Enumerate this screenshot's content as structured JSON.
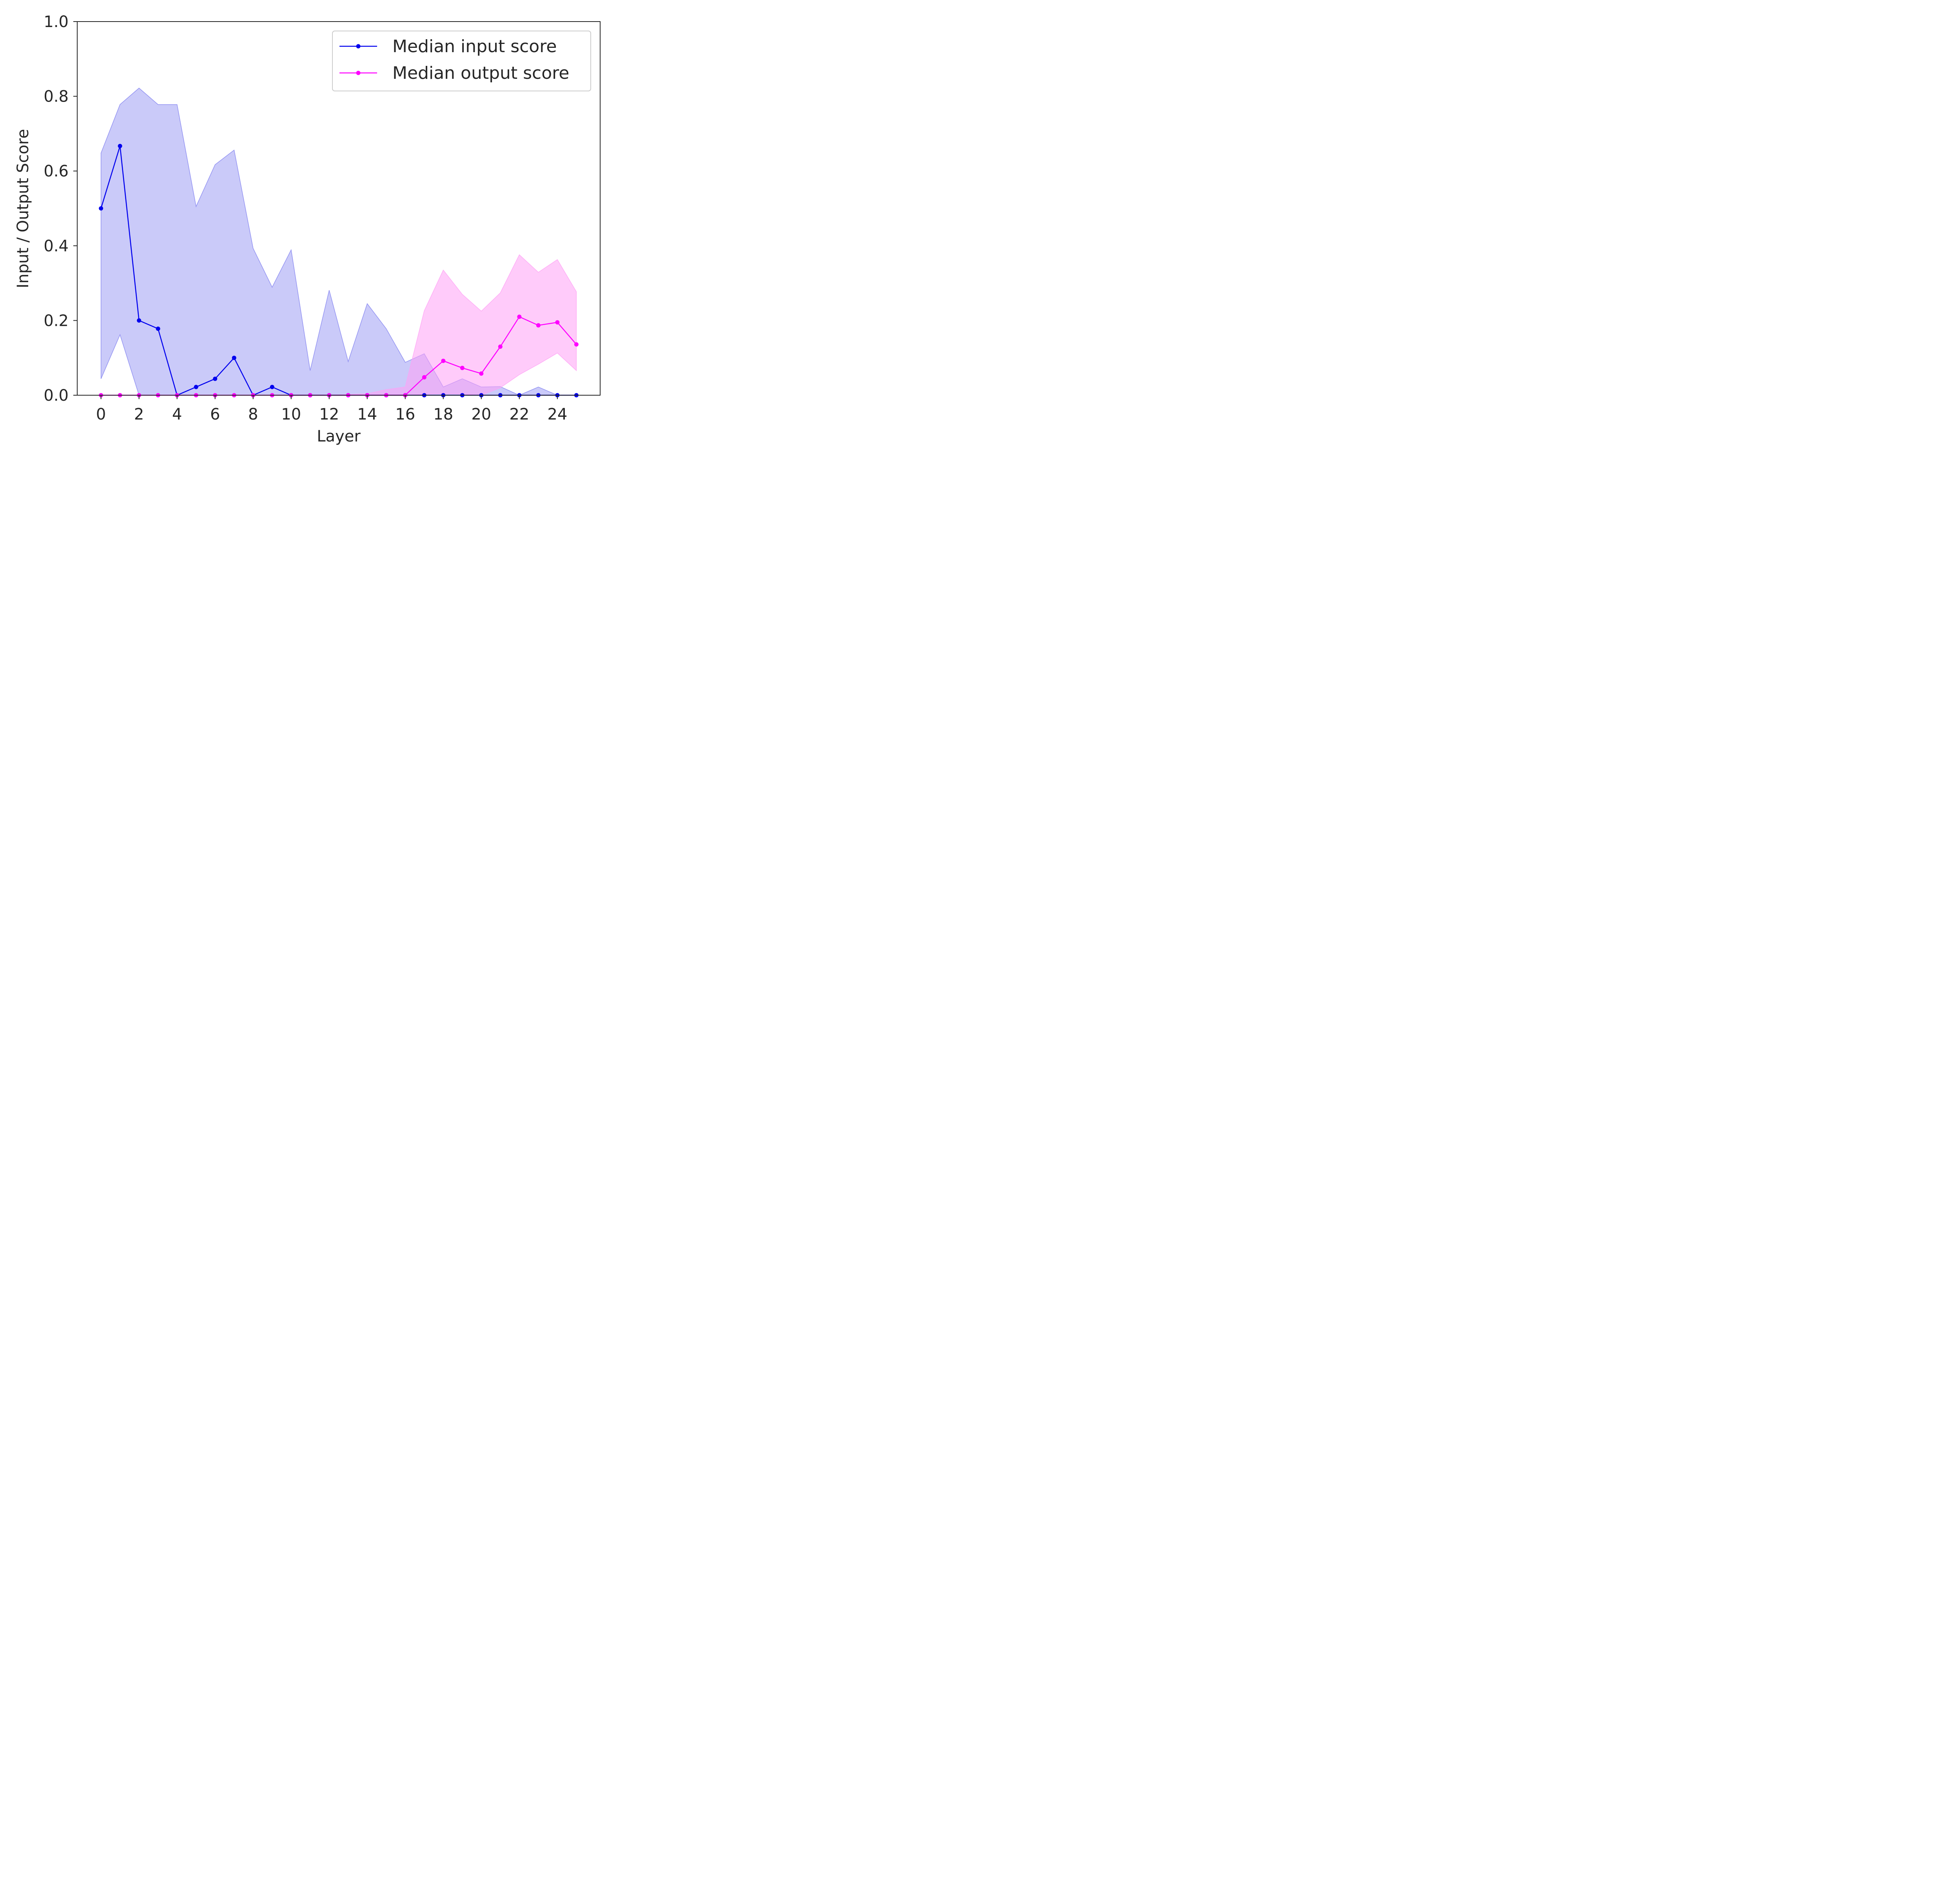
{
  "chart_data": {
    "type": "line",
    "xlabel": "Layer",
    "ylabel": "Input / Output Score",
    "xlim": [
      -1.25,
      26.25
    ],
    "ylim": [
      0.0,
      1.0
    ],
    "xticks": [
      0,
      2,
      4,
      6,
      8,
      10,
      12,
      14,
      16,
      18,
      20,
      22,
      24
    ],
    "xtick_labels": [
      "0",
      "2",
      "4",
      "6",
      "8",
      "10",
      "12",
      "14",
      "16",
      "18",
      "20",
      "22",
      "24"
    ],
    "yticks": [
      0.0,
      0.2,
      0.4,
      0.6,
      0.8,
      1.0
    ],
    "ytick_labels": [
      "0.0",
      "0.2",
      "0.4",
      "0.6",
      "0.8",
      "1.0"
    ],
    "grid": false,
    "legend_position": "top-right",
    "x": [
      0,
      1,
      2,
      3,
      4,
      5,
      6,
      7,
      8,
      9,
      10,
      11,
      12,
      13,
      14,
      15,
      16,
      17,
      18,
      19,
      20,
      21,
      22,
      23,
      24,
      25
    ],
    "series": [
      {
        "name": "Median input score",
        "color": "#0000ee",
        "band_color": "#8080f0",
        "values": [
          0.5,
          0.667,
          0.2,
          0.178,
          0.0,
          0.022,
          0.044,
          0.1,
          0.0,
          0.022,
          0.0,
          0.0,
          0.0,
          0.0,
          0.0,
          0.0,
          0.0,
          0.0,
          0.0,
          0.0,
          0.0,
          0.0,
          0.0,
          0.0,
          0.0,
          0.0
        ],
        "band_lower": [
          0.044,
          0.162,
          0.0,
          0.0,
          0.0,
          0.0,
          0.0,
          0.0,
          0.0,
          0.0,
          0.0,
          0.0,
          0.0,
          0.0,
          0.0,
          0.0,
          0.0,
          0.0,
          0.0,
          0.0,
          0.0,
          0.0,
          0.0,
          0.0,
          0.0,
          0.0
        ],
        "band_upper": [
          0.648,
          0.778,
          0.822,
          0.778,
          0.778,
          0.505,
          0.617,
          0.656,
          0.393,
          0.289,
          0.389,
          0.066,
          0.281,
          0.09,
          0.245,
          0.178,
          0.088,
          0.111,
          0.022,
          0.044,
          0.022,
          0.023,
          0.0,
          0.022,
          0.0,
          0.0
        ]
      },
      {
        "name": "Median output score",
        "color": "#ff00ff",
        "band_color": "#ffa0f5",
        "values": [
          0.0,
          0.0,
          0.0,
          0.0,
          0.0,
          0.0,
          0.0,
          0.0,
          0.0,
          0.0,
          0.0,
          0.0,
          0.0,
          0.0,
          0.0,
          0.0,
          0.0,
          0.048,
          0.092,
          0.073,
          0.058,
          0.13,
          0.21,
          0.187,
          0.195,
          0.136
        ],
        "band_lower": [
          0.0,
          0.0,
          0.0,
          0.0,
          0.0,
          0.0,
          0.0,
          0.0,
          0.0,
          0.0,
          0.0,
          0.0,
          0.0,
          0.0,
          0.0,
          0.0,
          0.0,
          0.003,
          0.004,
          0.003,
          0.0,
          0.02,
          0.055,
          0.083,
          0.113,
          0.066
        ],
        "band_upper": [
          0.0,
          0.0,
          0.0,
          0.0,
          0.0,
          0.0,
          0.0,
          0.0,
          0.0,
          0.0,
          0.0,
          0.0,
          0.0,
          0.002,
          0.004,
          0.015,
          0.022,
          0.226,
          0.335,
          0.27,
          0.225,
          0.274,
          0.376,
          0.329,
          0.363,
          0.277
        ]
      }
    ]
  }
}
